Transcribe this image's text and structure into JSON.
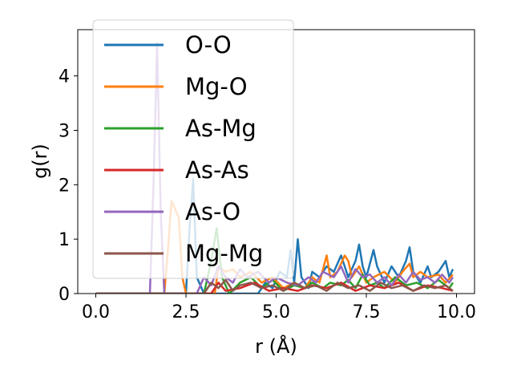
{
  "chart_data": {
    "type": "line",
    "title": "",
    "xlabel": "r (Å)",
    "ylabel": "g(r)",
    "xlim": [
      -0.5,
      10.5
    ],
    "ylim": [
      0,
      4.85
    ],
    "xticks": [
      0.0,
      2.5,
      5.0,
      7.5,
      10.0
    ],
    "xtick_labels": [
      "0.0",
      "2.5",
      "5.0",
      "7.5",
      "10.0"
    ],
    "yticks": [
      0,
      1,
      2,
      3,
      4
    ],
    "ytick_labels": [
      "0",
      "1",
      "2",
      "3",
      "4"
    ],
    "grid": false,
    "legend": "upper-left",
    "series": [
      {
        "name": "O-O",
        "color": "#1f77b4",
        "values": [
          [
            0,
            0
          ],
          [
            2.5,
            0
          ],
          [
            2.6,
            1.2
          ],
          [
            2.7,
            2.1
          ],
          [
            2.8,
            0.3
          ],
          [
            3.0,
            0
          ],
          [
            4.5,
            0
          ],
          [
            4.7,
            0.2
          ],
          [
            4.9,
            0.1
          ],
          [
            5.1,
            0.4
          ],
          [
            5.3,
            0.3
          ],
          [
            5.4,
            0.8
          ],
          [
            5.5,
            0.2
          ],
          [
            5.6,
            1.0
          ],
          [
            5.7,
            0.3
          ],
          [
            5.9,
            0.1
          ],
          [
            6.0,
            0.4
          ],
          [
            6.2,
            0.3
          ],
          [
            6.4,
            0.5
          ],
          [
            6.6,
            0.4
          ],
          [
            6.8,
            0.7
          ],
          [
            7.0,
            0.3
          ],
          [
            7.2,
            0.6
          ],
          [
            7.3,
            0.9
          ],
          [
            7.4,
            0.5
          ],
          [
            7.5,
            0.3
          ],
          [
            7.7,
            0.8
          ],
          [
            7.8,
            0.5
          ],
          [
            8.0,
            0.2
          ],
          [
            8.2,
            0.5
          ],
          [
            8.4,
            0.3
          ],
          [
            8.6,
            0.6
          ],
          [
            8.7,
            0.85
          ],
          [
            8.8,
            0.4
          ],
          [
            9.0,
            0.2
          ],
          [
            9.2,
            0.5
          ],
          [
            9.3,
            0.3
          ],
          [
            9.5,
            0.4
          ],
          [
            9.7,
            0.6
          ],
          [
            9.8,
            0.3
          ],
          [
            9.9,
            0.45
          ]
        ]
      },
      {
        "name": "Mg-O",
        "color": "#ff7f0e",
        "values": [
          [
            0,
            0
          ],
          [
            1.9,
            0
          ],
          [
            2.0,
            0.8
          ],
          [
            2.1,
            1.7
          ],
          [
            2.2,
            1.55
          ],
          [
            2.3,
            1.4
          ],
          [
            2.4,
            0.3
          ],
          [
            2.5,
            0
          ],
          [
            3.3,
            0
          ],
          [
            3.4,
            0.5
          ],
          [
            3.6,
            0.4
          ],
          [
            3.8,
            0.45
          ],
          [
            4.0,
            0.3
          ],
          [
            4.3,
            0.4
          ],
          [
            4.6,
            0.2
          ],
          [
            4.9,
            0.3
          ],
          [
            5.2,
            0.1
          ],
          [
            5.5,
            0.2
          ],
          [
            5.8,
            0.1
          ],
          [
            6.0,
            0.3
          ],
          [
            6.2,
            0.2
          ],
          [
            6.4,
            0.7
          ],
          [
            6.5,
            0.3
          ],
          [
            6.7,
            0.4
          ],
          [
            6.9,
            0.7
          ],
          [
            7.0,
            0.6
          ],
          [
            7.1,
            0.3
          ],
          [
            7.3,
            0.5
          ],
          [
            7.5,
            0.2
          ],
          [
            7.7,
            0.3
          ],
          [
            8.0,
            0.4
          ],
          [
            8.3,
            0.2
          ],
          [
            8.5,
            0.4
          ],
          [
            8.7,
            0.55
          ],
          [
            8.8,
            0.3
          ],
          [
            9.0,
            0.4
          ],
          [
            9.2,
            0.3
          ],
          [
            9.5,
            0.35
          ],
          [
            9.7,
            0.2
          ],
          [
            9.9,
            0.35
          ]
        ]
      },
      {
        "name": "As-Mg",
        "color": "#2ca02c",
        "values": [
          [
            0,
            0
          ],
          [
            3.0,
            0
          ],
          [
            3.2,
            0.6
          ],
          [
            3.35,
            1.2
          ],
          [
            3.5,
            0.3
          ],
          [
            3.7,
            0
          ],
          [
            4.0,
            0.2
          ],
          [
            4.3,
            0.3
          ],
          [
            4.6,
            0.1
          ],
          [
            4.9,
            0.25
          ],
          [
            5.2,
            0.05
          ],
          [
            5.5,
            0.15
          ],
          [
            5.8,
            0.1
          ],
          [
            6.0,
            0.2
          ],
          [
            6.3,
            0.1
          ],
          [
            6.5,
            0.2
          ],
          [
            6.8,
            0.15
          ],
          [
            7.0,
            0.25
          ],
          [
            7.2,
            0.1
          ],
          [
            7.4,
            0.35
          ],
          [
            7.6,
            0.15
          ],
          [
            7.8,
            0.2
          ],
          [
            8.0,
            0.1
          ],
          [
            8.3,
            0.3
          ],
          [
            8.6,
            0.15
          ],
          [
            8.9,
            0.2
          ],
          [
            9.2,
            0.1
          ],
          [
            9.5,
            0.25
          ],
          [
            9.8,
            0.1
          ],
          [
            9.9,
            0.2
          ]
        ]
      },
      {
        "name": "As-As",
        "color": "#d62728",
        "values": [
          [
            0,
            0
          ],
          [
            3.2,
            0
          ],
          [
            3.4,
            0.2
          ],
          [
            3.6,
            0.05
          ],
          [
            4.0,
            0.1
          ],
          [
            4.4,
            0.2
          ],
          [
            4.8,
            0.05
          ],
          [
            5.2,
            0.1
          ],
          [
            5.6,
            0.05
          ],
          [
            6.0,
            0.15
          ],
          [
            6.4,
            0.1
          ],
          [
            6.8,
            0.2
          ],
          [
            7.2,
            0.05
          ],
          [
            7.6,
            0.15
          ],
          [
            8.0,
            0.1
          ],
          [
            8.4,
            0.2
          ],
          [
            8.8,
            0.05
          ],
          [
            9.2,
            0.15
          ],
          [
            9.6,
            0.1
          ],
          [
            9.9,
            0.05
          ]
        ]
      },
      {
        "name": "As-O",
        "color": "#9467bd",
        "values": [
          [
            0,
            0
          ],
          [
            1.5,
            0
          ],
          [
            1.6,
            2.0
          ],
          [
            1.7,
            4.6
          ],
          [
            1.8,
            1.5
          ],
          [
            1.9,
            0
          ],
          [
            2.8,
            0
          ],
          [
            3.0,
            0.3
          ],
          [
            3.2,
            0.15
          ],
          [
            3.4,
            0.5
          ],
          [
            3.6,
            0.3
          ],
          [
            3.8,
            0.2
          ],
          [
            4.0,
            0.45
          ],
          [
            4.2,
            0.3
          ],
          [
            4.5,
            0.4
          ],
          [
            4.8,
            0.2
          ],
          [
            5.0,
            0.3
          ],
          [
            5.3,
            0.2
          ],
          [
            5.6,
            0.15
          ],
          [
            5.9,
            0.3
          ],
          [
            6.1,
            0.2
          ],
          [
            6.3,
            0.4
          ],
          [
            6.6,
            0.3
          ],
          [
            6.8,
            0.5
          ],
          [
            7.0,
            0.2
          ],
          [
            7.2,
            0.45
          ],
          [
            7.4,
            0.3
          ],
          [
            7.6,
            0.35
          ],
          [
            7.8,
            0.2
          ],
          [
            8.0,
            0.3
          ],
          [
            8.2,
            0.15
          ],
          [
            8.4,
            0.35
          ],
          [
            8.6,
            0.2
          ],
          [
            8.8,
            0.4
          ],
          [
            9.0,
            0.25
          ],
          [
            9.2,
            0.3
          ],
          [
            9.4,
            0.2
          ],
          [
            9.6,
            0.35
          ],
          [
            9.8,
            0.2
          ],
          [
            9.9,
            0.3
          ]
        ]
      },
      {
        "name": "Mg-Mg",
        "color": "#8c564b",
        "values": [
          [
            0,
            0
          ],
          [
            3.0,
            0
          ],
          [
            3.2,
            0.2
          ],
          [
            3.4,
            0.1
          ],
          [
            3.6,
            0.25
          ],
          [
            3.8,
            0.05
          ],
          [
            4.0,
            0.15
          ],
          [
            4.3,
            0.2
          ],
          [
            4.6,
            0.1
          ],
          [
            4.9,
            0.15
          ],
          [
            5.2,
            0.05
          ],
          [
            5.5,
            0.2
          ],
          [
            5.8,
            0.1
          ],
          [
            6.1,
            0.15
          ],
          [
            6.4,
            0.05
          ],
          [
            6.7,
            0.2
          ],
          [
            7.0,
            0.1
          ],
          [
            7.3,
            0.15
          ],
          [
            7.6,
            0.05
          ],
          [
            7.9,
            0.2
          ],
          [
            8.2,
            0.1
          ],
          [
            8.5,
            0.15
          ],
          [
            8.8,
            0.05
          ],
          [
            9.1,
            0.15
          ],
          [
            9.4,
            0.1
          ],
          [
            9.7,
            0.15
          ],
          [
            9.9,
            0.05
          ]
        ]
      }
    ]
  }
}
